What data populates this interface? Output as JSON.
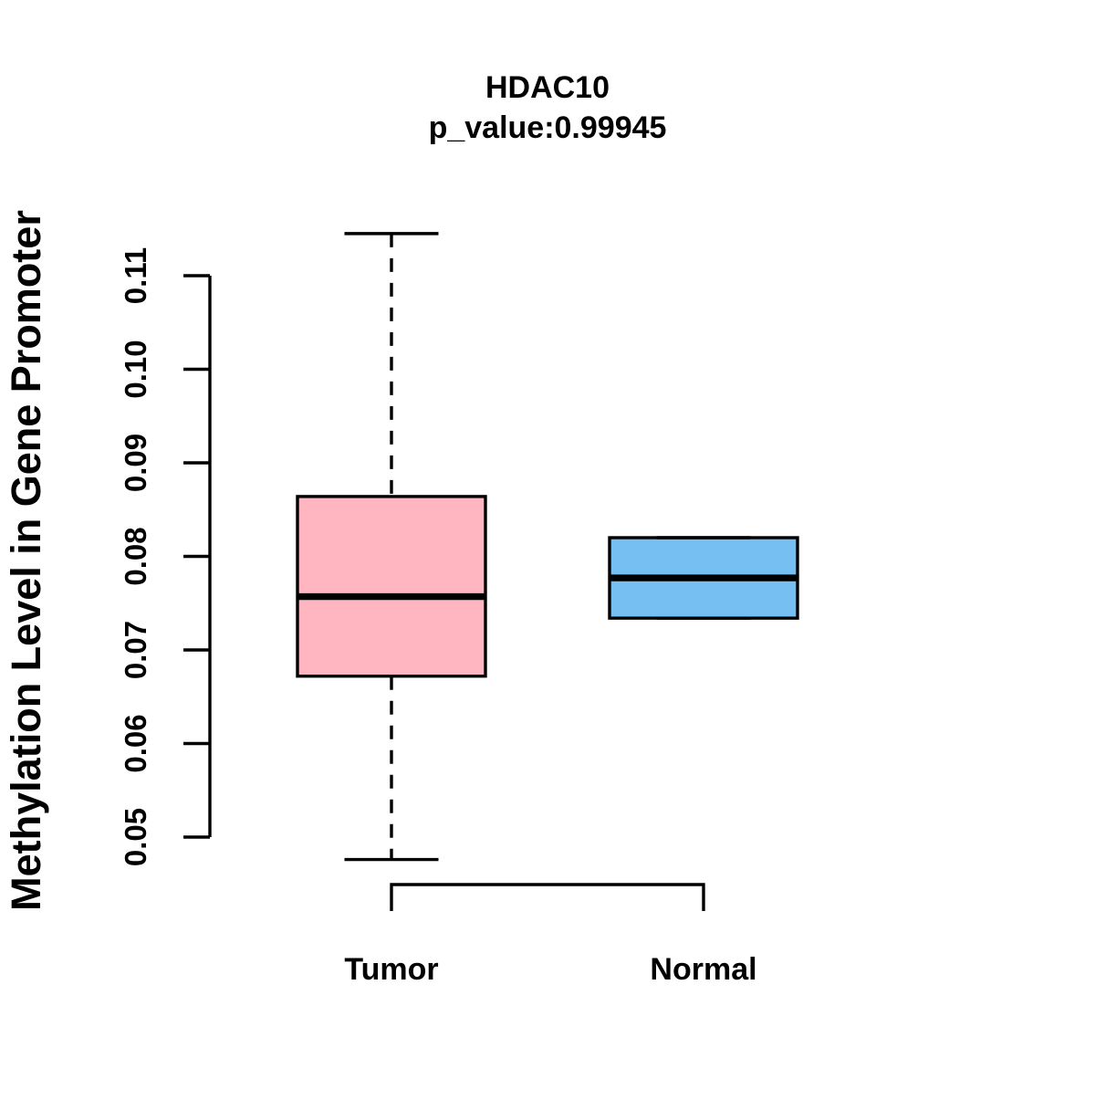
{
  "page": {
    "background": "#FFFFFF"
  },
  "chart_data": {
    "type": "boxplot",
    "title": "HDAC10",
    "subtitle": "p_value:0.99945",
    "xlabel": "",
    "ylabel": "Methylation Level in Gene Promoter",
    "categories": [
      "Tumor",
      "Normal"
    ],
    "y_tick_values": [
      0.05,
      0.06,
      0.07,
      0.08,
      0.09,
      0.1,
      0.11
    ],
    "y_tick_labels": [
      "0.05",
      "0.06",
      "0.07",
      "0.08",
      "0.09",
      "0.10",
      "0.11"
    ],
    "ylim": [
      0.0476,
      0.1145
    ],
    "grid": false,
    "legend": "none",
    "axis_color": "#000000",
    "series": [
      {
        "name": "Tumor",
        "fill_color": "#FFB6C1",
        "whisker_low": 0.0476,
        "q1": 0.0672,
        "median": 0.0757,
        "q3": 0.0864,
        "whisker_high": 0.1145
      },
      {
        "name": "Normal",
        "fill_color": "#75BFF3",
        "whisker_low": 0.0734,
        "q1": 0.0734,
        "median": 0.0777,
        "q3": 0.082,
        "whisker_high": 0.082
      }
    ]
  }
}
